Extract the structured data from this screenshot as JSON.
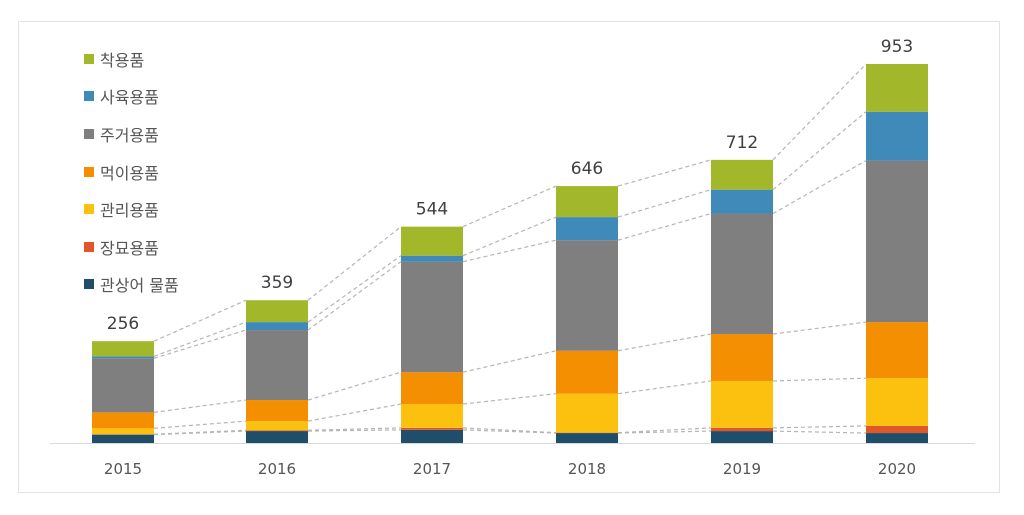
{
  "chart_data": {
    "type": "stacked-bar",
    "categories": [
      "2015",
      "2016",
      "2017",
      "2018",
      "2019",
      "2020"
    ],
    "series": [
      {
        "name": "관상어 물품",
        "color": "#1f4e6b",
        "values": [
          21,
          30,
          33,
          25,
          30,
          25
        ]
      },
      {
        "name": "장묘용품",
        "color": "#e0582a",
        "values": [
          1,
          2,
          5,
          1,
          8,
          18
        ]
      },
      {
        "name": "관리용품",
        "color": "#fcc10f",
        "values": [
          15,
          23,
          60,
          98,
          118,
          120
        ]
      },
      {
        "name": "먹이용품",
        "color": "#f38f00",
        "values": [
          40,
          53,
          80,
          108,
          118,
          141
        ]
      },
      {
        "name": "주거용품",
        "color": "#7f7f7f",
        "values": [
          136,
          176,
          278,
          278,
          303,
          406
        ]
      },
      {
        "name": "사육용품",
        "color": "#3f8ab8",
        "values": [
          5,
          20,
          15,
          58,
          60,
          123
        ]
      },
      {
        "name": "착용품",
        "color": "#a3b72a",
        "values": [
          38,
          55,
          73,
          78,
          75,
          120
        ]
      }
    ],
    "totals": [
      "256",
      "359",
      "544",
      "646",
      "712",
      "953"
    ],
    "legend_order": [
      "착용품",
      "사육용품",
      "주거용품",
      "먹이용품",
      "관리용품",
      "장묘용품",
      "관상어 물품"
    ],
    "legend_position": "top-left",
    "grid": false,
    "connector_lines": "dashed"
  }
}
